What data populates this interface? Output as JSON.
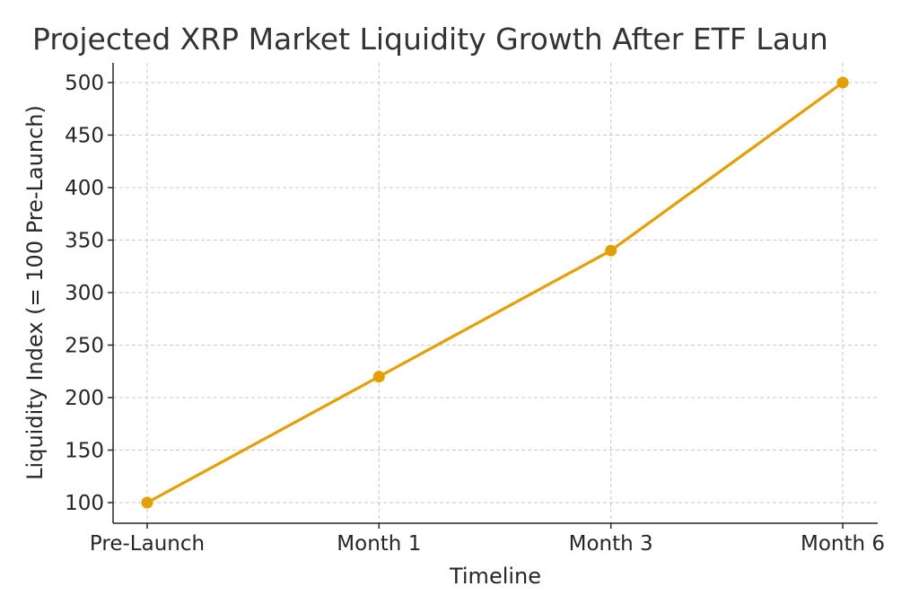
{
  "chart_data": {
    "type": "line",
    "title": "Projected XRP Market Liquidity Growth After ETF Laun",
    "xlabel": "Timeline",
    "ylabel": "Liquidity Index (= 100 Pre-Launch)",
    "categories": [
      "Pre-Launch",
      "Month 1",
      "Month 3",
      "Month 6"
    ],
    "series": [
      {
        "name": "Liquidity Index",
        "values": [
          100,
          220,
          340,
          500
        ],
        "color": "#E69F00",
        "marker": "circle"
      }
    ],
    "yticks": [
      "100",
      "150",
      "200",
      "250",
      "300",
      "350",
      "400",
      "450",
      "500"
    ],
    "ylim": [
      80,
      520
    ],
    "grid": true,
    "legend": "none"
  }
}
